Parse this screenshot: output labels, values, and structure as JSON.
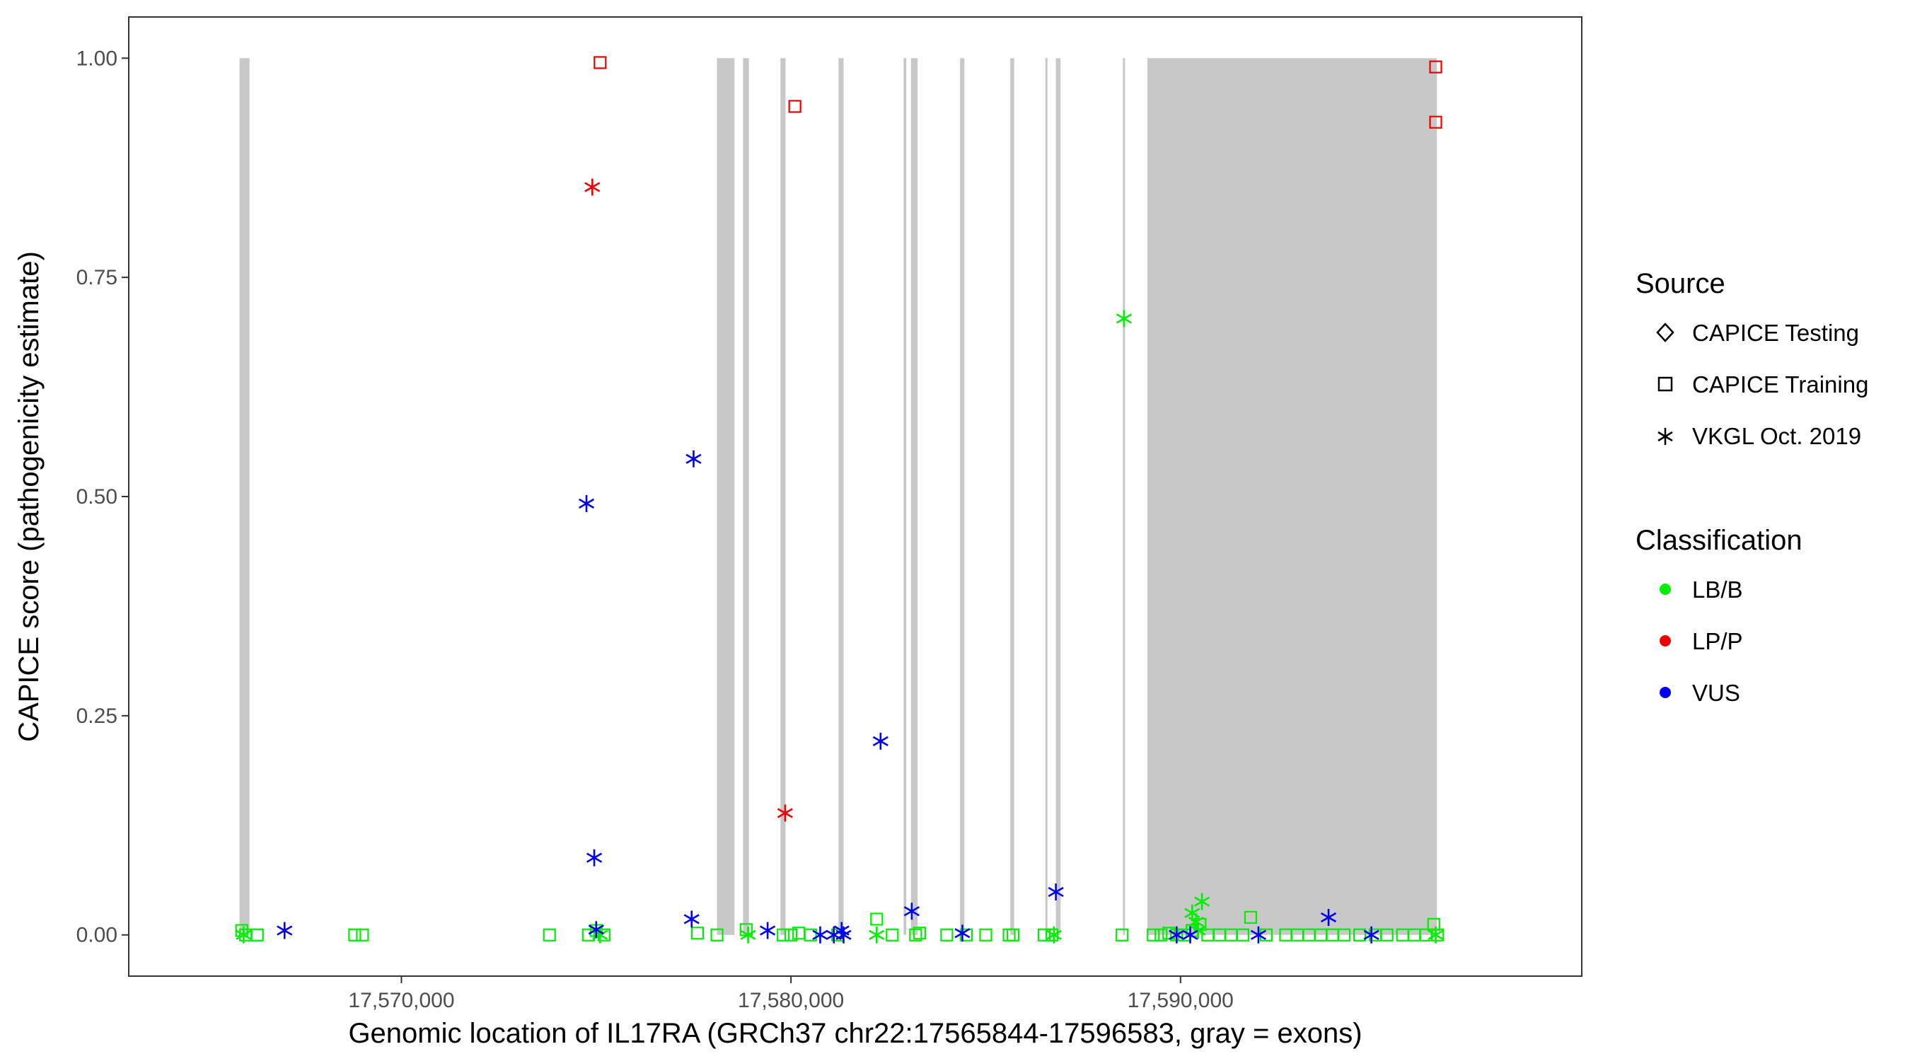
{
  "chart_data": {
    "type": "scatter",
    "title": "",
    "xlabel": "Genomic location of IL17RA (GRCh37 chr22:17565844-17596583, gray = exons)",
    "ylabel": "CAPICE score (pathogenicity estimate)",
    "xlim": [
      17563000,
      17600300
    ],
    "ylim": [
      -0.047,
      1.047
    ],
    "x_ticks": [
      {
        "value": 17570000,
        "label": "17,570,000"
      },
      {
        "value": 17580000,
        "label": "17,580,000"
      },
      {
        "value": 17590000,
        "label": "17,590,000"
      }
    ],
    "y_ticks": [
      {
        "value": 0,
        "label": "0.00"
      },
      {
        "value": 0.25,
        "label": "0.25"
      },
      {
        "value": 0.5,
        "label": "0.50"
      },
      {
        "value": 0.75,
        "label": "0.75"
      },
      {
        "value": 1.0,
        "label": "1.00"
      }
    ],
    "grid": false,
    "exons": [
      [
        17565844,
        17566100
      ],
      [
        17578100,
        17578550
      ],
      [
        17578770,
        17578920
      ],
      [
        17579730,
        17579860
      ],
      [
        17581220,
        17581350
      ],
      [
        17582890,
        17582960
      ],
      [
        17583080,
        17583250
      ],
      [
        17584340,
        17584450
      ],
      [
        17585630,
        17585730
      ],
      [
        17586530,
        17586580
      ],
      [
        17586800,
        17586920
      ],
      [
        17588520,
        17588560
      ],
      [
        17589150,
        17596583
      ]
    ],
    "legend": {
      "placement": "right",
      "source": {
        "title": "Source",
        "items": [
          {
            "label": "CAPICE Testing",
            "shape": "diamond"
          },
          {
            "label": "CAPICE Training",
            "shape": "square"
          },
          {
            "label": "VKGL Oct. 2019",
            "shape": "asterisk"
          }
        ]
      },
      "classification": {
        "title": "Classification",
        "items": [
          {
            "label": "LB/B",
            "color": "#00ee00"
          },
          {
            "label": "LP/P",
            "color": "#ee0000"
          },
          {
            "label": "VUS",
            "color": "#0000ee"
          }
        ]
      }
    },
    "series": [
      {
        "name": "LB/B",
        "color": "#00ee00",
        "points": [
          {
            "x": 17565900,
            "y": 0.005,
            "source": "CAPICE Training"
          },
          {
            "x": 17566000,
            "y": 0.0,
            "source": "CAPICE Training"
          },
          {
            "x": 17566300,
            "y": 0.0,
            "source": "CAPICE Training"
          },
          {
            "x": 17565950,
            "y": 0.0,
            "source": "VKGL Oct. 2019"
          },
          {
            "x": 17568800,
            "y": 0.0,
            "source": "CAPICE Training"
          },
          {
            "x": 17569000,
            "y": 0.0,
            "source": "CAPICE Training"
          },
          {
            "x": 17573800,
            "y": 0.0,
            "source": "CAPICE Training"
          },
          {
            "x": 17574800,
            "y": 0.0,
            "source": "CAPICE Training"
          },
          {
            "x": 17575000,
            "y": 0.005,
            "source": "CAPICE Training"
          },
          {
            "x": 17575200,
            "y": 0.0,
            "source": "CAPICE Training"
          },
          {
            "x": 17575100,
            "y": 0.0,
            "source": "VKGL Oct. 2019"
          },
          {
            "x": 17577600,
            "y": 0.002,
            "source": "CAPICE Training"
          },
          {
            "x": 17578100,
            "y": 0.0,
            "source": "CAPICE Training"
          },
          {
            "x": 17578850,
            "y": 0.006,
            "source": "CAPICE Training"
          },
          {
            "x": 17578900,
            "y": 0.0,
            "source": "VKGL Oct. 2019"
          },
          {
            "x": 17579800,
            "y": 0.0,
            "source": "CAPICE Training"
          },
          {
            "x": 17580000,
            "y": 0.0,
            "source": "CAPICE Training"
          },
          {
            "x": 17580200,
            "y": 0.002,
            "source": "CAPICE Training"
          },
          {
            "x": 17580500,
            "y": 0.0,
            "source": "CAPICE Training"
          },
          {
            "x": 17581200,
            "y": 0.0,
            "source": "CAPICE Training"
          },
          {
            "x": 17582200,
            "y": 0.018,
            "source": "CAPICE Training"
          },
          {
            "x": 17582200,
            "y": 0.0,
            "source": "VKGL Oct. 2019"
          },
          {
            "x": 17582600,
            "y": 0.0,
            "source": "CAPICE Training"
          },
          {
            "x": 17583200,
            "y": 0.0,
            "source": "CAPICE Training"
          },
          {
            "x": 17583300,
            "y": 0.002,
            "source": "CAPICE Training"
          },
          {
            "x": 17584000,
            "y": 0.0,
            "source": "CAPICE Training"
          },
          {
            "x": 17584500,
            "y": 0.0,
            "source": "CAPICE Training"
          },
          {
            "x": 17585000,
            "y": 0.0,
            "source": "CAPICE Training"
          },
          {
            "x": 17585600,
            "y": 0.0,
            "source": "CAPICE Training"
          },
          {
            "x": 17585700,
            "y": 0.0,
            "source": "CAPICE Training"
          },
          {
            "x": 17586500,
            "y": 0.0,
            "source": "CAPICE Training"
          },
          {
            "x": 17586700,
            "y": 0.0,
            "source": "CAPICE Training"
          },
          {
            "x": 17586750,
            "y": 0.0,
            "source": "VKGL Oct. 2019"
          },
          {
            "x": 17588500,
            "y": 0.0,
            "source": "CAPICE Training"
          },
          {
            "x": 17588550,
            "y": 0.703,
            "source": "VKGL Oct. 2019"
          },
          {
            "x": 17589300,
            "y": 0.0,
            "source": "CAPICE Training"
          },
          {
            "x": 17589500,
            "y": 0.0,
            "source": "CAPICE Training"
          },
          {
            "x": 17589700,
            "y": 0.002,
            "source": "CAPICE Training"
          },
          {
            "x": 17589900,
            "y": 0.0,
            "source": "CAPICE Training"
          },
          {
            "x": 17590100,
            "y": 0.0,
            "source": "CAPICE Training"
          },
          {
            "x": 17590300,
            "y": 0.005,
            "source": "CAPICE Training"
          },
          {
            "x": 17590500,
            "y": 0.012,
            "source": "CAPICE Training"
          },
          {
            "x": 17590300,
            "y": 0.025,
            "source": "VKGL Oct. 2019"
          },
          {
            "x": 17590400,
            "y": 0.015,
            "source": "VKGL Oct. 2019"
          },
          {
            "x": 17590550,
            "y": 0.038,
            "source": "VKGL Oct. 2019"
          },
          {
            "x": 17590450,
            "y": 0.005,
            "source": "VKGL Oct. 2019"
          },
          {
            "x": 17590700,
            "y": 0.0,
            "source": "CAPICE Training"
          },
          {
            "x": 17591000,
            "y": 0.0,
            "source": "CAPICE Training"
          },
          {
            "x": 17591300,
            "y": 0.0,
            "source": "CAPICE Training"
          },
          {
            "x": 17591600,
            "y": 0.0,
            "source": "CAPICE Training"
          },
          {
            "x": 17591800,
            "y": 0.02,
            "source": "CAPICE Training"
          },
          {
            "x": 17592200,
            "y": 0.0,
            "source": "CAPICE Training"
          },
          {
            "x": 17592700,
            "y": 0.0,
            "source": "CAPICE Training"
          },
          {
            "x": 17593000,
            "y": 0.0,
            "source": "CAPICE Training"
          },
          {
            "x": 17593300,
            "y": 0.0,
            "source": "CAPICE Training"
          },
          {
            "x": 17593600,
            "y": 0.0,
            "source": "CAPICE Training"
          },
          {
            "x": 17593900,
            "y": 0.0,
            "source": "CAPICE Training"
          },
          {
            "x": 17594200,
            "y": 0.0,
            "source": "CAPICE Training"
          },
          {
            "x": 17594600,
            "y": 0.0,
            "source": "CAPICE Training"
          },
          {
            "x": 17595000,
            "y": 0.0,
            "source": "CAPICE Training"
          },
          {
            "x": 17595300,
            "y": 0.0,
            "source": "CAPICE Training"
          },
          {
            "x": 17595700,
            "y": 0.0,
            "source": "CAPICE Training"
          },
          {
            "x": 17596000,
            "y": 0.0,
            "source": "CAPICE Training"
          },
          {
            "x": 17596300,
            "y": 0.0,
            "source": "CAPICE Training"
          },
          {
            "x": 17596500,
            "y": 0.012,
            "source": "CAPICE Training"
          },
          {
            "x": 17596600,
            "y": 0.0,
            "source": "CAPICE Training"
          },
          {
            "x": 17596550,
            "y": 0.0,
            "source": "VKGL Oct. 2019"
          }
        ]
      },
      {
        "name": "LP/P",
        "color": "#ee0000",
        "points": [
          {
            "x": 17575100,
            "y": 0.995,
            "source": "CAPICE Training"
          },
          {
            "x": 17574900,
            "y": 0.853,
            "source": "VKGL Oct. 2019"
          },
          {
            "x": 17580100,
            "y": 0.945,
            "source": "CAPICE Training"
          },
          {
            "x": 17579850,
            "y": 0.139,
            "source": "VKGL Oct. 2019"
          },
          {
            "x": 17596550,
            "y": 0.99,
            "source": "CAPICE Training"
          },
          {
            "x": 17596550,
            "y": 0.927,
            "source": "CAPICE Training"
          }
        ]
      },
      {
        "name": "VUS",
        "color": "#0000ee",
        "points": [
          {
            "x": 17567000,
            "y": 0.005,
            "source": "VKGL Oct. 2019"
          },
          {
            "x": 17574750,
            "y": 0.492,
            "source": "VKGL Oct. 2019"
          },
          {
            "x": 17574950,
            "y": 0.088,
            "source": "VKGL Oct. 2019"
          },
          {
            "x": 17575000,
            "y": 0.006,
            "source": "VKGL Oct. 2019"
          },
          {
            "x": 17577500,
            "y": 0.543,
            "source": "VKGL Oct. 2019"
          },
          {
            "x": 17577450,
            "y": 0.018,
            "source": "VKGL Oct. 2019"
          },
          {
            "x": 17579400,
            "y": 0.005,
            "source": "VKGL Oct. 2019"
          },
          {
            "x": 17580750,
            "y": 0.0,
            "source": "VKGL Oct. 2019"
          },
          {
            "x": 17581100,
            "y": 0.0,
            "source": "VKGL Oct. 2019"
          },
          {
            "x": 17581300,
            "y": 0.005,
            "source": "VKGL Oct. 2019"
          },
          {
            "x": 17581350,
            "y": 0.0,
            "source": "VKGL Oct. 2019"
          },
          {
            "x": 17582300,
            "y": 0.221,
            "source": "VKGL Oct. 2019"
          },
          {
            "x": 17583100,
            "y": 0.027,
            "source": "VKGL Oct. 2019"
          },
          {
            "x": 17584400,
            "y": 0.002,
            "source": "VKGL Oct. 2019"
          },
          {
            "x": 17586800,
            "y": 0.049,
            "source": "VKGL Oct. 2019"
          },
          {
            "x": 17589900,
            "y": 0.0,
            "source": "VKGL Oct. 2019"
          },
          {
            "x": 17590250,
            "y": 0.0,
            "source": "VKGL Oct. 2019"
          },
          {
            "x": 17592000,
            "y": 0.0,
            "source": "VKGL Oct. 2019"
          },
          {
            "x": 17593800,
            "y": 0.02,
            "source": "VKGL Oct. 2019"
          },
          {
            "x": 17594900,
            "y": 0.0,
            "source": "VKGL Oct. 2019"
          }
        ]
      }
    ]
  }
}
